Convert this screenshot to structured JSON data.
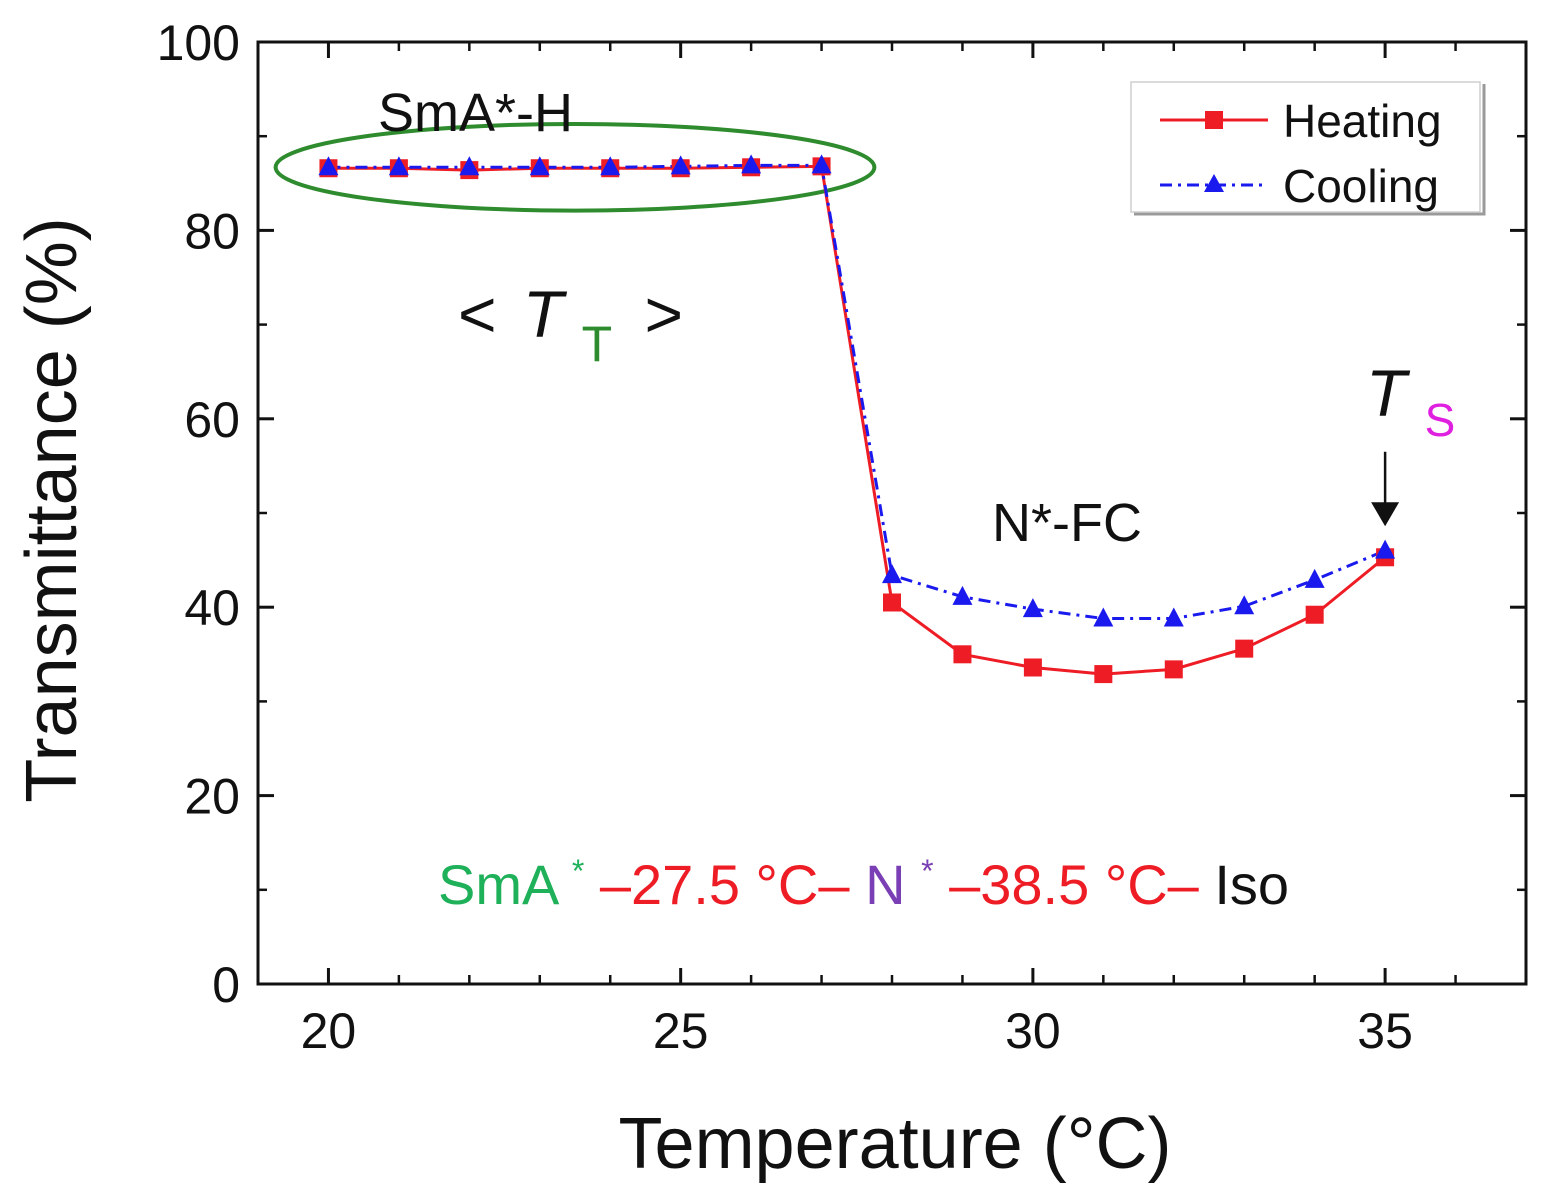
{
  "chart_data": {
    "type": "line",
    "xlabel": "Temperature (°C)",
    "ylabel": "Transmittance (%)",
    "xlim": [
      19,
      37
    ],
    "ylim": [
      0,
      100
    ],
    "x_ticks": [
      20,
      25,
      30,
      35
    ],
    "y_ticks": [
      0,
      20,
      40,
      60,
      80,
      100
    ],
    "x_minor_ticks": [
      21,
      22,
      23,
      24,
      26,
      27,
      28,
      29,
      31,
      32,
      33,
      34,
      36
    ],
    "y_minor_ticks": [
      10,
      30,
      50,
      70,
      90
    ],
    "grid": false,
    "legend_position": "top-right",
    "series": [
      {
        "name": "Heating",
        "color": "#ee1c24",
        "marker": "square",
        "line": "solid",
        "x": [
          20,
          21,
          22,
          23,
          24,
          25,
          26,
          27,
          28,
          29,
          30,
          31,
          32,
          33,
          34,
          35
        ],
        "values": [
          86.6,
          86.6,
          86.4,
          86.6,
          86.6,
          86.6,
          86.7,
          86.8,
          40.5,
          35.0,
          33.6,
          32.9,
          33.4,
          35.6,
          39.2,
          45.3
        ]
      },
      {
        "name": "Cooling",
        "color": "#1a1aee",
        "marker": "triangle",
        "line": "dashdot",
        "x": [
          20,
          21,
          22,
          23,
          24,
          25,
          26,
          27,
          28,
          29,
          30,
          31,
          32,
          33,
          34,
          35
        ],
        "values": [
          86.7,
          86.7,
          86.7,
          86.7,
          86.7,
          86.8,
          86.9,
          86.9,
          43.4,
          41.1,
          39.8,
          38.8,
          38.8,
          40.1,
          42.9,
          46.0
        ]
      }
    ],
    "annotations": {
      "smah_label": "SmA*-H",
      "tt_open": "<",
      "tt_T": "T",
      "tt_sub": "T",
      "tt_close": ">",
      "nfc_label": "N*-FC",
      "ts_T": "T",
      "ts_sub": "S",
      "phase_seq": {
        "p1": "SmA",
        "p1_sup": "*",
        "p2": "–27.5 °C–",
        "p3": "N",
        "p3_sup": "*",
        "p4": "–38.5 °C–",
        "p5": "Iso"
      }
    },
    "ellipse": {
      "center_x": 23.5,
      "center_y": 86.7,
      "half_width_x": 4.25,
      "half_height_y": 4.6
    },
    "arrow": {
      "x": 35,
      "from_y": 56.5,
      "to_y": 48.6
    },
    "colors": {
      "ellipse": "#2e8b2e",
      "tt_sub": "#2e8b2e",
      "ts_sub": "#e020e0",
      "phase_smA": "#1fb05a",
      "phase_temp": "#ee1c24",
      "phase_N": "#7a3fb5",
      "phase_iso": "#111111"
    }
  }
}
